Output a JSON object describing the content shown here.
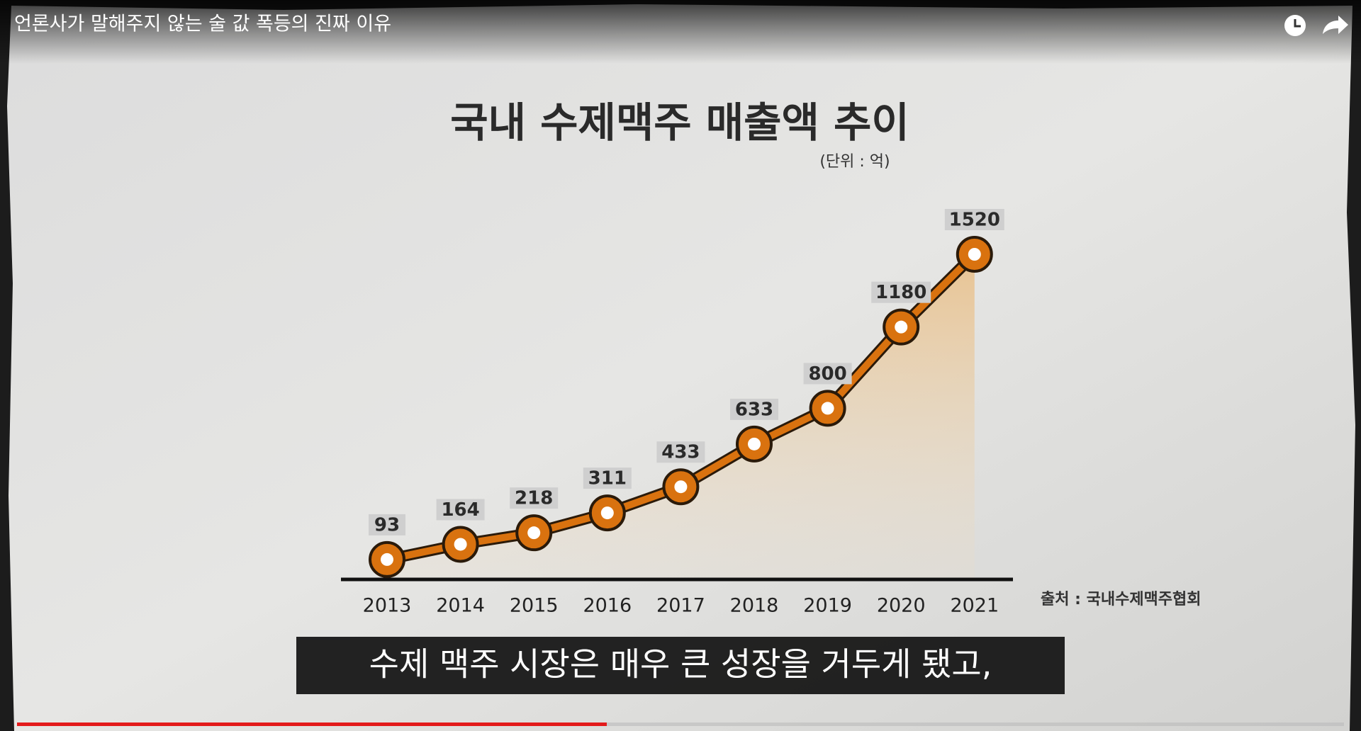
{
  "video": {
    "title": "언론사가 말해주지 않는 술 값 폭등의 진짜 이유",
    "caption": "수제 맥주 시장은 매우 큰 성장을 거두게 됐고,"
  },
  "chart_data": {
    "type": "line",
    "title": "국내 수제맥주 매출액 추이",
    "subtitle": "(단위 : 억)",
    "source": "출처 : 국내수제맥주협회",
    "categories": [
      "2013",
      "2014",
      "2015",
      "2016",
      "2017",
      "2018",
      "2019",
      "2020",
      "2021"
    ],
    "values": [
      93,
      164,
      218,
      311,
      433,
      633,
      800,
      1180,
      1520
    ],
    "color": "#d9720f"
  }
}
